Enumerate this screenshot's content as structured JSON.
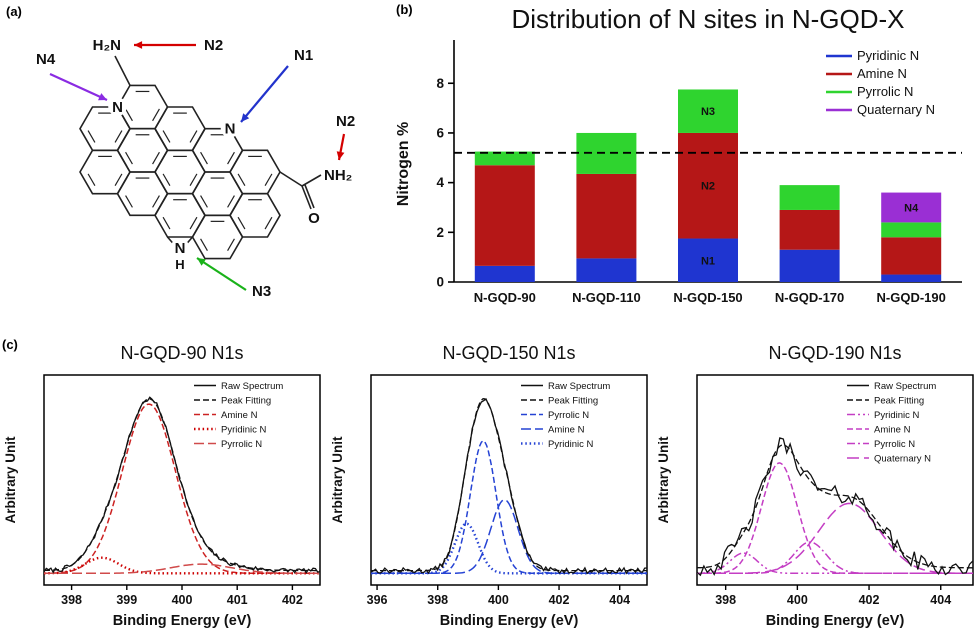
{
  "panels": {
    "a": "(a)",
    "b": "(b)",
    "c": "(c)"
  },
  "structure": {
    "amine_top": "H₂N",
    "amide_n": "NH₂",
    "amide_o": "O",
    "ring_n": "N",
    "pyrrolic_n": "N",
    "pyrrolic_h": "H",
    "atom_color": "#2244cc",
    "oxygen_color": "#d40000",
    "bond_color": "#222222",
    "annotations": [
      {
        "id": "n2-top",
        "text": "N2",
        "arrow_color": "#d40000"
      },
      {
        "id": "n1",
        "text": "N1",
        "arrow_color": "#2233cc"
      },
      {
        "id": "n4",
        "text": "N4",
        "arrow_color": "#8a2be2"
      },
      {
        "id": "n2-right",
        "text": "N2",
        "arrow_color": "#d40000"
      },
      {
        "id": "n3",
        "text": "N3",
        "arrow_color": "#1ab21a"
      }
    ]
  },
  "chart_data": [
    {
      "type": "bar",
      "stacked": true,
      "title": "Distribution of N sites in N-GQD-X",
      "xlabel": "",
      "ylabel": "Nitrogen %",
      "ylim": [
        0,
        9.5
      ],
      "yticks": [
        0,
        2,
        4,
        6,
        8
      ],
      "grid": false,
      "legend_position": "top-right",
      "categories": [
        "N-GQD-90",
        "N-GQD-110",
        "N-GQD-150",
        "N-GQD-170",
        "N-GQD-190"
      ],
      "series": [
        {
          "name": "Pyridinic N",
          "color": "#1f35d0",
          "values": [
            0.65,
            0.95,
            1.75,
            1.3,
            0.3
          ]
        },
        {
          "name": "Amine N",
          "color": "#b51717",
          "values": [
            4.05,
            3.4,
            4.25,
            1.6,
            1.5
          ]
        },
        {
          "name": "Pyrrolic N",
          "color": "#2fd42f",
          "values": [
            0.55,
            1.65,
            1.75,
            1.0,
            0.6
          ]
        },
        {
          "name": "Quaternary N",
          "color": "#9a2fd4",
          "values": [
            0,
            0,
            0,
            0,
            1.2
          ]
        }
      ],
      "segment_labels": [
        {
          "category": "N-GQD-150",
          "series": "Pyridinic N",
          "text": "N1"
        },
        {
          "category": "N-GQD-150",
          "series": "Amine N",
          "text": "N2"
        },
        {
          "category": "N-GQD-150",
          "series": "Pyrrolic N",
          "text": "N3"
        },
        {
          "category": "N-GQD-190",
          "series": "Quaternary N",
          "text": "N4"
        }
      ],
      "dashed_line_y": 5.2
    },
    {
      "type": "line",
      "title": "N-GQD-90 N1s",
      "xlabel": "Binding Energy (eV)",
      "ylabel": "Arbitrary Unit",
      "xlim": [
        397.5,
        402.5
      ],
      "xticks": [
        398,
        399,
        400,
        401,
        402
      ],
      "baseline": 0.035,
      "noise": 0.013,
      "seed": 7,
      "series": [
        {
          "name": "Raw Spectrum",
          "color": "#111111",
          "style": "solid",
          "role": "raw"
        },
        {
          "name": "Peak Fitting",
          "color": "#111111",
          "style": "dashed",
          "role": "fit"
        },
        {
          "name": "Amine N",
          "color": "#cc2222",
          "style": "dashed",
          "peak": {
            "center": 399.4,
            "height": 0.92,
            "width": 0.48
          }
        },
        {
          "name": "Pyridinic N",
          "color": "#cc0000",
          "style": "dotted",
          "peak": {
            "center": 398.55,
            "height": 0.085,
            "width": 0.3
          }
        },
        {
          "name": "Pyrrolic N",
          "color": "#d04a4a",
          "style": "dashed2",
          "peak": {
            "center": 400.35,
            "height": 0.05,
            "width": 0.55
          }
        }
      ]
    },
    {
      "type": "line",
      "title": "N-GQD-150 N1s",
      "xlabel": "Binding Energy (eV)",
      "ylabel": "Arbitrary Unit",
      "xlim": [
        395.8,
        404.9
      ],
      "xticks": [
        396,
        398,
        400,
        402,
        404
      ],
      "baseline": 0.035,
      "noise": 0.015,
      "seed": 13,
      "series": [
        {
          "name": "Raw Spectrum",
          "color": "#111111",
          "style": "solid",
          "role": "raw"
        },
        {
          "name": "Peak Fitting",
          "color": "#111111",
          "style": "dashed",
          "role": "fit"
        },
        {
          "name": "Pyrrolic N",
          "color": "#2543d4",
          "style": "dashed",
          "peak": {
            "center": 399.5,
            "height": 0.72,
            "width": 0.42
          }
        },
        {
          "name": "Amine N",
          "color": "#2543d4",
          "style": "dashed2",
          "peak": {
            "center": 400.2,
            "height": 0.4,
            "width": 0.45
          }
        },
        {
          "name": "Pyridinic N",
          "color": "#2543d4",
          "style": "dotted",
          "peak": {
            "center": 398.95,
            "height": 0.27,
            "width": 0.38
          }
        }
      ]
    },
    {
      "type": "line",
      "title": "N-GQD-190 N1s",
      "xlabel": "Binding Energy (eV)",
      "ylabel": "Arbitrary Unit",
      "xlim": [
        397.2,
        404.9
      ],
      "xticks": [
        398,
        400,
        402,
        404
      ],
      "baseline": 0.05,
      "noise": 0.05,
      "seed": 42,
      "series": [
        {
          "name": "Raw Spectrum",
          "color": "#111111",
          "style": "solid",
          "role": "raw"
        },
        {
          "name": "Peak Fitting",
          "color": "#111111",
          "style": "dashed",
          "role": "fit"
        },
        {
          "name": "Pyridinic N",
          "color": "#c43ec4",
          "style": "dashdotdot",
          "peak": {
            "center": 398.5,
            "height": 0.11,
            "width": 0.38
          }
        },
        {
          "name": "Amine N",
          "color": "#c43ec4",
          "style": "dashed",
          "peak": {
            "center": 399.5,
            "height": 0.6,
            "width": 0.5
          }
        },
        {
          "name": "Pyrrolic N",
          "color": "#c43ec4",
          "style": "dashdot",
          "peak": {
            "center": 400.35,
            "height": 0.17,
            "width": 0.45
          }
        },
        {
          "name": "Quaternary N",
          "color": "#c43ec4",
          "style": "longdash",
          "peak": {
            "center": 401.45,
            "height": 0.38,
            "width": 0.85
          }
        }
      ]
    }
  ]
}
